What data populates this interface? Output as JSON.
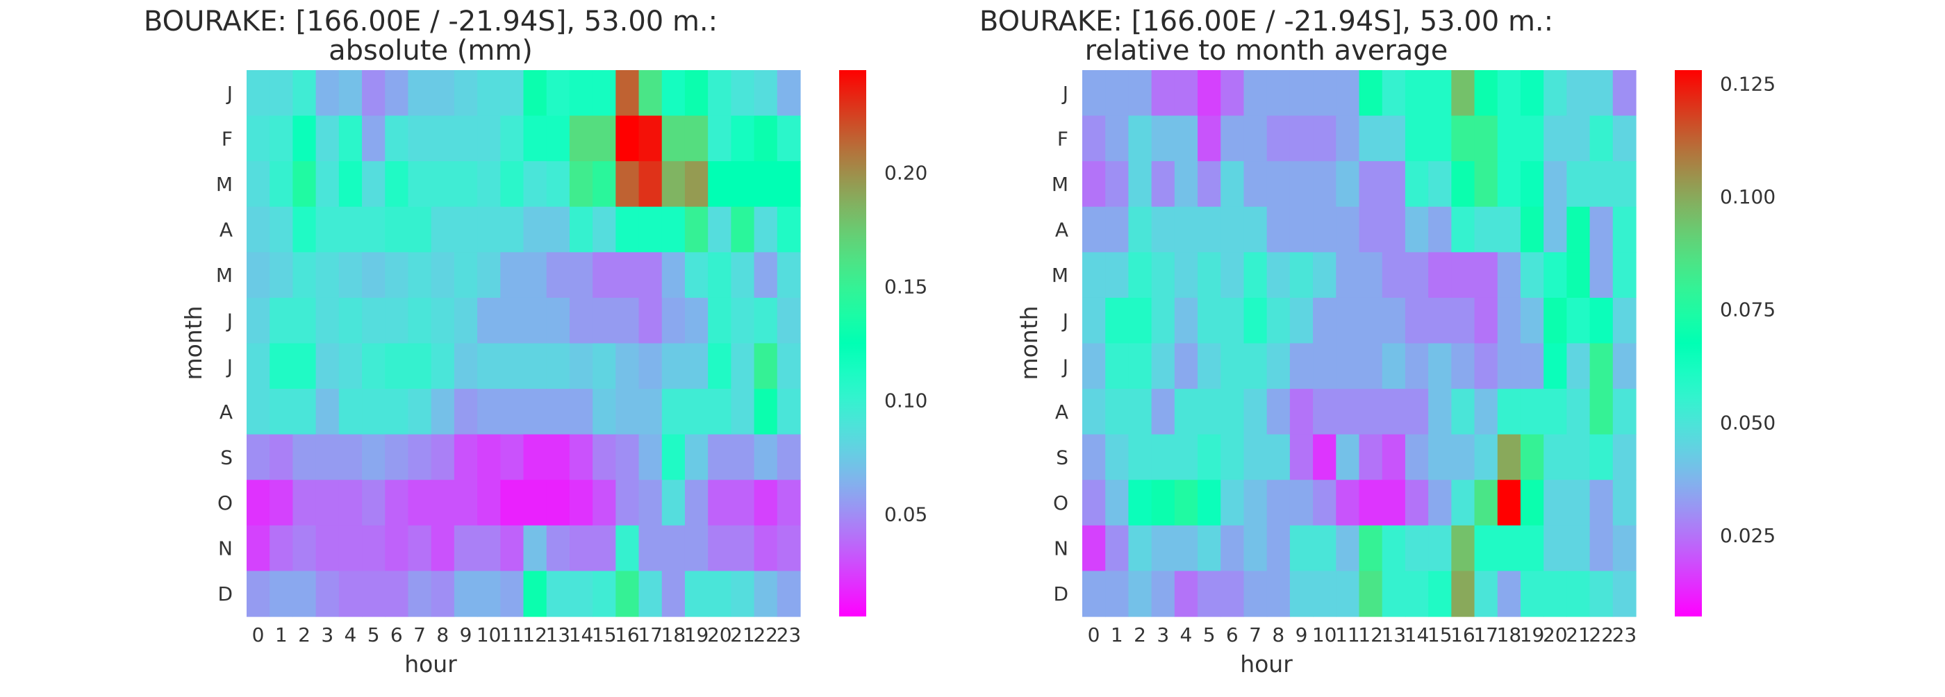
{
  "chart_data": [
    {
      "type": "heatmap",
      "title_line1": "BOURAKE: [166.00E / -21.94S], 53.00 m.:",
      "title_line2": "absolute (mm)",
      "xlabel": "hour",
      "ylabel": "month",
      "x_categories": [
        "0",
        "1",
        "2",
        "3",
        "4",
        "5",
        "6",
        "7",
        "8",
        "9",
        "10",
        "11",
        "12",
        "13",
        "14",
        "15",
        "16",
        "17",
        "18",
        "19",
        "20",
        "21",
        "22",
        "23"
      ],
      "y_categories": [
        "J",
        "F",
        "M",
        "A",
        "M",
        "J",
        "J",
        "A",
        "S",
        "O",
        "N",
        "D"
      ],
      "colorscale": "rainbow",
      "color_range": [
        0.005,
        0.245
      ],
      "colorbar_ticks": [
        "0.05",
        "0.10",
        "0.15",
        "0.20"
      ],
      "values": [
        [
          0.085,
          0.085,
          0.095,
          0.065,
          0.07,
          0.05,
          0.06,
          0.075,
          0.075,
          0.08,
          0.085,
          0.085,
          0.13,
          0.11,
          0.115,
          0.115,
          0.215,
          0.16,
          0.115,
          0.13,
          0.1,
          0.09,
          0.085,
          0.065
        ],
        [
          0.09,
          0.095,
          0.12,
          0.085,
          0.105,
          0.06,
          0.09,
          0.085,
          0.085,
          0.085,
          0.085,
          0.095,
          0.115,
          0.115,
          0.165,
          0.165,
          0.245,
          0.24,
          0.165,
          0.165,
          0.1,
          0.115,
          0.13,
          0.105
        ],
        [
          0.085,
          0.1,
          0.14,
          0.09,
          0.115,
          0.085,
          0.11,
          0.095,
          0.095,
          0.095,
          0.09,
          0.105,
          0.09,
          0.095,
          0.155,
          0.145,
          0.215,
          0.23,
          0.185,
          0.195,
          0.125,
          0.125,
          0.125,
          0.125
        ],
        [
          0.08,
          0.085,
          0.11,
          0.095,
          0.095,
          0.095,
          0.1,
          0.1,
          0.085,
          0.085,
          0.085,
          0.085,
          0.075,
          0.075,
          0.1,
          0.085,
          0.115,
          0.115,
          0.115,
          0.15,
          0.085,
          0.145,
          0.085,
          0.11
        ],
        [
          0.075,
          0.08,
          0.09,
          0.085,
          0.08,
          0.075,
          0.08,
          0.085,
          0.08,
          0.085,
          0.08,
          0.065,
          0.065,
          0.055,
          0.055,
          0.045,
          0.045,
          0.045,
          0.065,
          0.09,
          0.1,
          0.085,
          0.06,
          0.085
        ],
        [
          0.08,
          0.095,
          0.095,
          0.085,
          0.09,
          0.085,
          0.085,
          0.09,
          0.085,
          0.08,
          0.065,
          0.065,
          0.065,
          0.065,
          0.055,
          0.055,
          0.055,
          0.045,
          0.06,
          0.065,
          0.1,
          0.09,
          0.095,
          0.08
        ],
        [
          0.085,
          0.11,
          0.11,
          0.08,
          0.085,
          0.095,
          0.1,
          0.1,
          0.09,
          0.075,
          0.08,
          0.08,
          0.08,
          0.08,
          0.075,
          0.08,
          0.07,
          0.065,
          0.075,
          0.075,
          0.11,
          0.085,
          0.15,
          0.085
        ],
        [
          0.085,
          0.09,
          0.09,
          0.07,
          0.09,
          0.09,
          0.09,
          0.085,
          0.07,
          0.055,
          0.06,
          0.06,
          0.06,
          0.06,
          0.06,
          0.075,
          0.07,
          0.07,
          0.095,
          0.095,
          0.095,
          0.085,
          0.13,
          0.09
        ],
        [
          0.05,
          0.045,
          0.055,
          0.055,
          0.055,
          0.06,
          0.055,
          0.05,
          0.045,
          0.03,
          0.025,
          0.03,
          0.02,
          0.02,
          0.03,
          0.045,
          0.05,
          0.065,
          0.11,
          0.075,
          0.055,
          0.055,
          0.065,
          0.055
        ],
        [
          0.02,
          0.025,
          0.04,
          0.04,
          0.04,
          0.045,
          0.035,
          0.03,
          0.03,
          0.03,
          0.025,
          0.015,
          0.015,
          0.015,
          0.02,
          0.03,
          0.05,
          0.055,
          0.085,
          0.055,
          0.035,
          0.035,
          0.025,
          0.035
        ],
        [
          0.025,
          0.04,
          0.045,
          0.04,
          0.04,
          0.04,
          0.035,
          0.04,
          0.03,
          0.045,
          0.045,
          0.035,
          0.07,
          0.05,
          0.045,
          0.045,
          0.1,
          0.055,
          0.055,
          0.055,
          0.045,
          0.045,
          0.035,
          0.04
        ],
        [
          0.055,
          0.06,
          0.06,
          0.05,
          0.045,
          0.045,
          0.045,
          0.055,
          0.05,
          0.065,
          0.065,
          0.06,
          0.13,
          0.09,
          0.09,
          0.095,
          0.15,
          0.085,
          0.055,
          0.09,
          0.09,
          0.085,
          0.07,
          0.06
        ]
      ]
    },
    {
      "type": "heatmap",
      "title_line1": "BOURAKE: [166.00E / -21.94S], 53.00 m.:",
      "title_line2": "relative to month average",
      "xlabel": "hour",
      "ylabel": "month",
      "x_categories": [
        "0",
        "1",
        "2",
        "3",
        "4",
        "5",
        "6",
        "7",
        "8",
        "9",
        "10",
        "11",
        "12",
        "13",
        "14",
        "15",
        "16",
        "17",
        "18",
        "19",
        "20",
        "21",
        "22",
        "23"
      ],
      "y_categories": [
        "J",
        "F",
        "M",
        "A",
        "M",
        "J",
        "J",
        "A",
        "S",
        "O",
        "N",
        "D"
      ],
      "colorscale": "rainbow",
      "color_range": [
        0.007,
        0.128
      ],
      "colorbar_ticks": [
        "0.025",
        "0.050",
        "0.075",
        "0.100",
        "0.125"
      ],
      "values": [
        [
          0.035,
          0.035,
          0.035,
          0.025,
          0.025,
          0.017,
          0.025,
          0.035,
          0.035,
          0.035,
          0.035,
          0.035,
          0.07,
          0.055,
          0.06,
          0.06,
          0.095,
          0.07,
          0.06,
          0.065,
          0.05,
          0.045,
          0.045,
          0.03
        ],
        [
          0.03,
          0.035,
          0.045,
          0.04,
          0.04,
          0.02,
          0.035,
          0.035,
          0.03,
          0.03,
          0.03,
          0.035,
          0.045,
          0.045,
          0.06,
          0.06,
          0.08,
          0.08,
          0.06,
          0.06,
          0.045,
          0.045,
          0.055,
          0.045
        ],
        [
          0.025,
          0.03,
          0.045,
          0.03,
          0.04,
          0.03,
          0.045,
          0.035,
          0.035,
          0.035,
          0.035,
          0.04,
          0.03,
          0.03,
          0.055,
          0.05,
          0.07,
          0.08,
          0.06,
          0.065,
          0.04,
          0.05,
          0.05,
          0.05
        ],
        [
          0.035,
          0.035,
          0.05,
          0.045,
          0.045,
          0.045,
          0.045,
          0.045,
          0.035,
          0.035,
          0.035,
          0.035,
          0.03,
          0.03,
          0.04,
          0.035,
          0.055,
          0.05,
          0.05,
          0.07,
          0.04,
          0.07,
          0.035,
          0.055
        ],
        [
          0.045,
          0.045,
          0.055,
          0.05,
          0.045,
          0.05,
          0.045,
          0.055,
          0.045,
          0.05,
          0.045,
          0.035,
          0.035,
          0.03,
          0.03,
          0.025,
          0.025,
          0.025,
          0.035,
          0.05,
          0.06,
          0.07,
          0.035,
          0.055
        ],
        [
          0.045,
          0.06,
          0.06,
          0.05,
          0.04,
          0.05,
          0.05,
          0.06,
          0.05,
          0.045,
          0.035,
          0.035,
          0.035,
          0.035,
          0.03,
          0.03,
          0.03,
          0.025,
          0.035,
          0.04,
          0.07,
          0.06,
          0.065,
          0.045
        ],
        [
          0.04,
          0.055,
          0.055,
          0.045,
          0.035,
          0.045,
          0.05,
          0.05,
          0.045,
          0.035,
          0.035,
          0.035,
          0.035,
          0.04,
          0.035,
          0.04,
          0.035,
          0.03,
          0.035,
          0.035,
          0.065,
          0.045,
          0.08,
          0.04
        ],
        [
          0.045,
          0.05,
          0.05,
          0.035,
          0.05,
          0.05,
          0.05,
          0.045,
          0.035,
          0.025,
          0.03,
          0.03,
          0.03,
          0.03,
          0.03,
          0.04,
          0.05,
          0.04,
          0.055,
          0.055,
          0.055,
          0.05,
          0.08,
          0.05
        ],
        [
          0.035,
          0.045,
          0.05,
          0.05,
          0.05,
          0.055,
          0.05,
          0.045,
          0.045,
          0.025,
          0.015,
          0.04,
          0.025,
          0.02,
          0.035,
          0.04,
          0.04,
          0.045,
          0.1,
          0.08,
          0.05,
          0.05,
          0.055,
          0.045
        ],
        [
          0.03,
          0.04,
          0.065,
          0.07,
          0.075,
          0.065,
          0.045,
          0.04,
          0.035,
          0.035,
          0.03,
          0.02,
          0.015,
          0.015,
          0.025,
          0.035,
          0.05,
          0.085,
          0.128,
          0.07,
          0.045,
          0.045,
          0.035,
          0.045
        ],
        [
          0.017,
          0.03,
          0.045,
          0.04,
          0.04,
          0.045,
          0.035,
          0.04,
          0.035,
          0.05,
          0.05,
          0.04,
          0.08,
          0.055,
          0.05,
          0.05,
          0.095,
          0.06,
          0.06,
          0.06,
          0.045,
          0.045,
          0.035,
          0.04
        ],
        [
          0.035,
          0.035,
          0.04,
          0.035,
          0.025,
          0.03,
          0.03,
          0.035,
          0.035,
          0.045,
          0.045,
          0.045,
          0.085,
          0.055,
          0.055,
          0.06,
          0.1,
          0.05,
          0.035,
          0.055,
          0.055,
          0.055,
          0.05,
          0.045
        ]
      ]
    }
  ]
}
